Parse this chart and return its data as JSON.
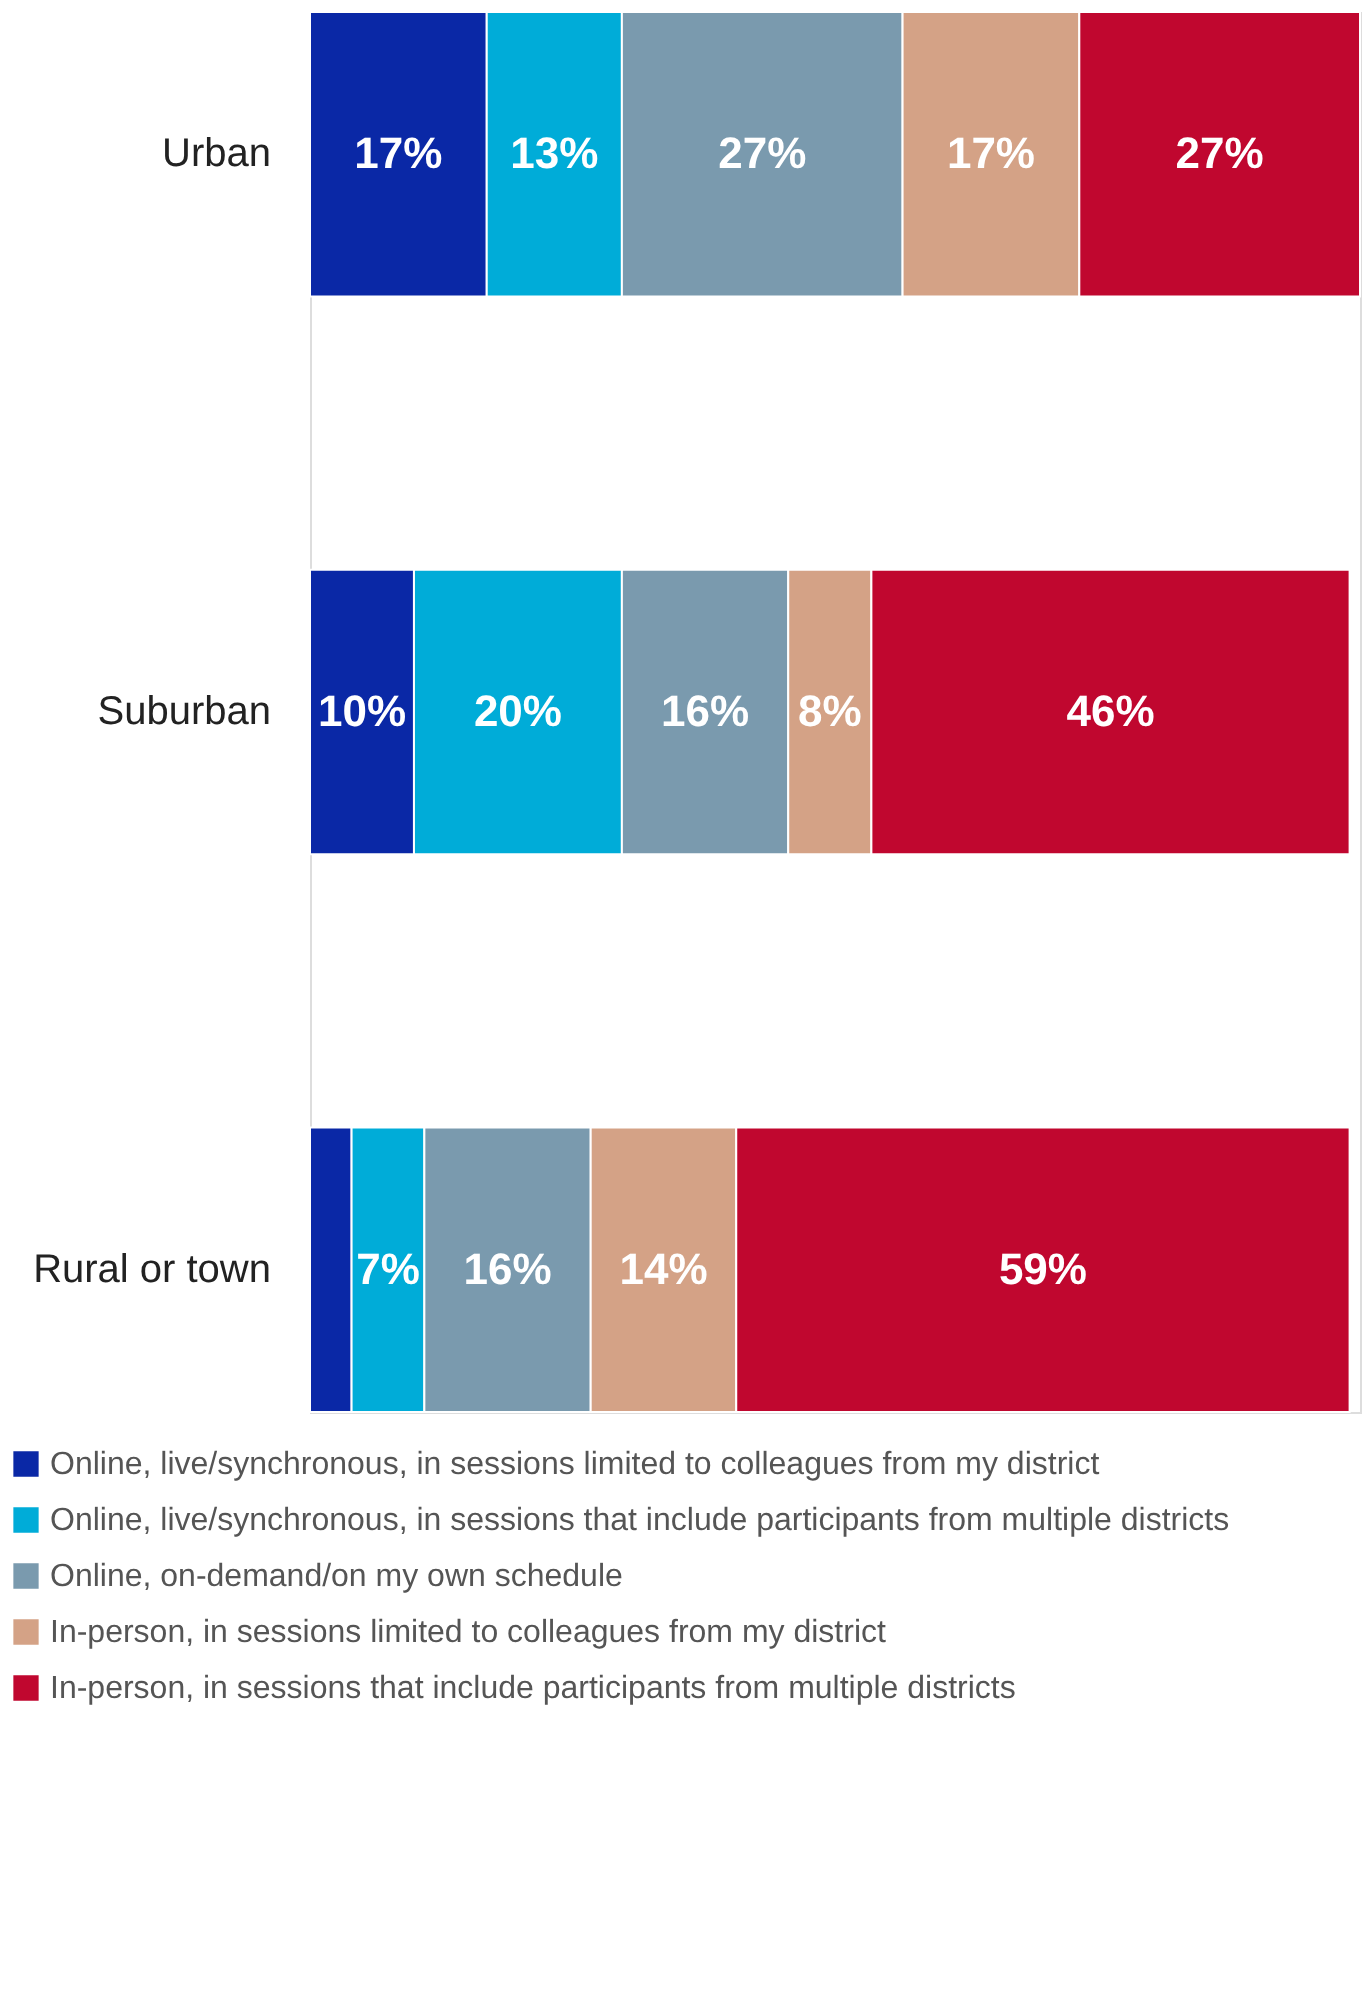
{
  "chart_data": {
    "type": "bar",
    "orientation": "horizontal",
    "stacked": true,
    "categories": [
      "Urban",
      "Suburban",
      "Rural or town"
    ],
    "xlim": [
      0,
      101
    ],
    "tick_labels": "y",
    "legend": "bottom",
    "series": [
      {
        "name": "Online, live/synchronous, in sessions limited to colleagues from my district",
        "color": "#0a28a6",
        "values": [
          17,
          10,
          4
        ],
        "value_labels": [
          "17%",
          "10%",
          null
        ]
      },
      {
        "name": "Online, live/synchronous, in sessions that include participants from multiple districts",
        "color": "#00acd8",
        "values": [
          13,
          20,
          7
        ],
        "value_labels": [
          "13%",
          "20%",
          "7%"
        ]
      },
      {
        "name": "Online, on-demand/on my own schedule",
        "color": "#7a9aae",
        "values": [
          27,
          16,
          16
        ],
        "value_labels": [
          "27%",
          "16%",
          "16%"
        ]
      },
      {
        "name": "In-person, in sessions limited to colleagues from my district",
        "color": "#d4a286",
        "values": [
          17,
          8,
          14
        ],
        "value_labels": [
          "17%",
          "8%",
          "14%"
        ]
      },
      {
        "name": "In-person, in sessions that include participants from multiple districts",
        "color": "#c0072f",
        "values": [
          27,
          46,
          59
        ],
        "value_labels": [
          "27%",
          "46%",
          "59%"
        ]
      }
    ]
  }
}
